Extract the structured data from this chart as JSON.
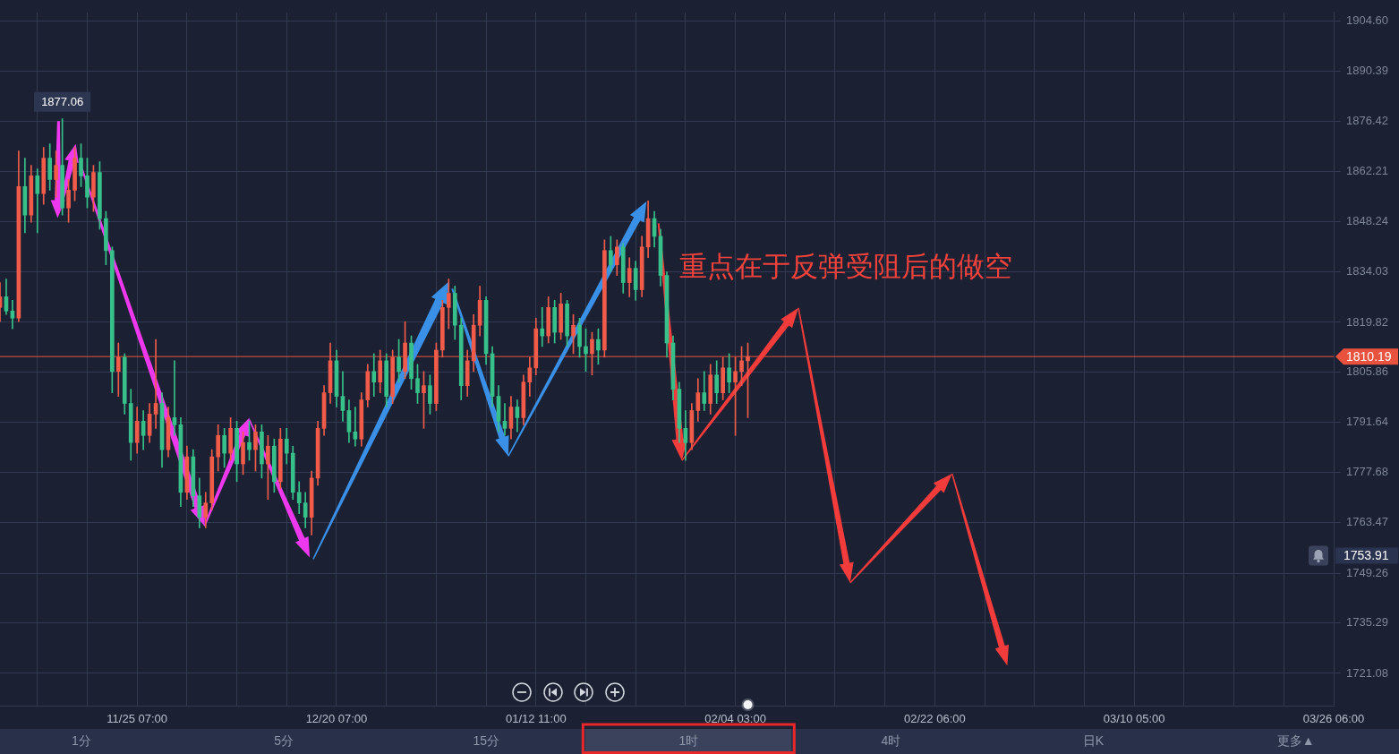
{
  "chart_data": {
    "type": "candlestick",
    "categories": [
      null,
      null,
      null,
      null,
      null,
      null,
      null,
      null,
      null,
      null,
      null,
      null,
      null,
      null,
      null,
      null,
      null,
      null,
      null,
      null,
      null,
      null,
      "11/25 07:00",
      null,
      null,
      null,
      null,
      null,
      null,
      null,
      null,
      null,
      null,
      null,
      null,
      null,
      null,
      null,
      null,
      null,
      null,
      null,
      null,
      null,
      null,
      null,
      null,
      null,
      null,
      null,
      null,
      null,
      null,
      null,
      "12/20 07:00",
      null,
      null,
      null,
      null,
      null,
      null,
      null,
      null,
      null,
      null,
      null,
      null,
      null,
      null,
      null,
      null,
      null,
      null,
      null,
      null,
      null,
      null,
      null,
      null,
      null,
      null,
      null,
      null,
      null,
      null,
      null,
      "01/12 11:00",
      null,
      null,
      null,
      null,
      null,
      null,
      null,
      null,
      null,
      null,
      null,
      null,
      null,
      null,
      null,
      null,
      null,
      null,
      null,
      null,
      null,
      null,
      null,
      null,
      null,
      null,
      null,
      null,
      null,
      null,
      null,
      "02/04 03:00",
      null,
      null,
      null,
      null,
      null,
      null,
      null,
      null,
      null,
      null,
      null,
      null,
      null,
      null,
      null,
      null,
      null,
      null,
      null,
      null,
      null,
      null,
      null,
      null,
      null,
      null,
      null,
      null,
      null,
      null,
      null,
      "02/22 06:00",
      null,
      null,
      null,
      null,
      null,
      null,
      null,
      null,
      null,
      null,
      null,
      null,
      null,
      null,
      null,
      null,
      null,
      null,
      null,
      null,
      null,
      null,
      null,
      null,
      null,
      null,
      null,
      null,
      null,
      null,
      null,
      "03/10 05:00",
      null,
      null,
      null,
      null,
      null,
      null,
      null,
      null,
      null,
      null,
      null,
      null,
      null,
      null,
      null,
      null,
      null,
      null,
      null,
      null,
      null,
      null,
      null,
      null,
      null,
      null,
      null,
      null,
      null,
      null,
      null,
      "03/26 06:00"
    ],
    "ohlc": [
      [
        1824,
        1831,
        1820,
        1827
      ],
      [
        1827,
        1832,
        1822,
        1823
      ],
      [
        1823,
        1826,
        1818,
        1821
      ],
      [
        1821,
        1868,
        1820,
        1858
      ],
      [
        1858,
        1866,
        1845,
        1850
      ],
      [
        1850,
        1864,
        1848,
        1861
      ],
      [
        1861,
        1863,
        1845,
        1856
      ],
      [
        1856,
        1869,
        1853,
        1866
      ],
      [
        1866,
        1870,
        1857,
        1860
      ],
      [
        1860,
        1868,
        1855,
        1864
      ],
      [
        1864,
        1877.06,
        1850,
        1852
      ],
      [
        1852,
        1860,
        1848,
        1857
      ],
      [
        1857,
        1869,
        1854,
        1866
      ],
      [
        1866,
        1870,
        1858,
        1861
      ],
      [
        1861,
        1866,
        1852,
        1855
      ],
      [
        1855,
        1864,
        1851,
        1862
      ],
      [
        1862,
        1865,
        1846,
        1849
      ],
      [
        1849,
        1851,
        1836,
        1840
      ],
      [
        1840,
        1841,
        1800,
        1806
      ],
      [
        1806,
        1814,
        1799,
        1810
      ],
      [
        1810,
        1811,
        1794,
        1797
      ],
      [
        1797,
        1801,
        1781,
        1786
      ],
      [
        1786,
        1796,
        1783,
        1792
      ],
      [
        1792,
        1795,
        1784,
        1788
      ],
      [
        1788,
        1797,
        1786,
        1794
      ],
      [
        1794,
        1815,
        1790,
        1797
      ],
      [
        1797,
        1800,
        1779,
        1784
      ],
      [
        1784,
        1796,
        1782,
        1793
      ],
      [
        1793,
        1809,
        1788,
        1791
      ],
      [
        1791,
        1793,
        1768,
        1772
      ],
      [
        1772,
        1785,
        1770,
        1782
      ],
      [
        1782,
        1784,
        1768,
        1771
      ],
      [
        1771,
        1776,
        1762,
        1765
      ],
      [
        1765,
        1772,
        1762,
        1769
      ],
      [
        1769,
        1784,
        1767,
        1782
      ],
      [
        1782,
        1791,
        1778,
        1788
      ],
      [
        1788,
        1790,
        1779,
        1783
      ],
      [
        1783,
        1793,
        1781,
        1790
      ],
      [
        1790,
        1792,
        1775,
        1780
      ],
      [
        1780,
        1789,
        1777,
        1786
      ],
      [
        1786,
        1792,
        1781,
        1784
      ],
      [
        1784,
        1791,
        1778,
        1789
      ],
      [
        1789,
        1791,
        1776,
        1780
      ],
      [
        1780,
        1788,
        1770,
        1785
      ],
      [
        1785,
        1787,
        1772,
        1775
      ],
      [
        1775,
        1790,
        1773,
        1787
      ],
      [
        1787,
        1790,
        1780,
        1783
      ],
      [
        1783,
        1785,
        1770,
        1772
      ],
      [
        1772,
        1775,
        1766,
        1769
      ],
      [
        1769,
        1772,
        1762,
        1765
      ],
      [
        1765,
        1778,
        1760,
        1776
      ],
      [
        1776,
        1792,
        1774,
        1790
      ],
      [
        1790,
        1802,
        1788,
        1800
      ],
      [
        1800,
        1814,
        1797,
        1809
      ],
      [
        1809,
        1812,
        1796,
        1799
      ],
      [
        1799,
        1806,
        1792,
        1795
      ],
      [
        1795,
        1798,
        1786,
        1789
      ],
      [
        1789,
        1796,
        1785,
        1787
      ],
      [
        1787,
        1800,
        1785,
        1798
      ],
      [
        1798,
        1808,
        1796,
        1806
      ],
      [
        1806,
        1811,
        1799,
        1803
      ],
      [
        1803,
        1812,
        1800,
        1809
      ],
      [
        1809,
        1811,
        1796,
        1799
      ],
      [
        1799,
        1812,
        1797,
        1810
      ],
      [
        1810,
        1815,
        1803,
        1806
      ],
      [
        1806,
        1820,
        1804,
        1814
      ],
      [
        1814,
        1816,
        1801,
        1804
      ],
      [
        1804,
        1808,
        1797,
        1800
      ],
      [
        1800,
        1806,
        1790,
        1802
      ],
      [
        1802,
        1805,
        1794,
        1797
      ],
      [
        1797,
        1814,
        1795,
        1812
      ],
      [
        1812,
        1826,
        1810,
        1824
      ],
      [
        1824,
        1832,
        1818,
        1828
      ],
      [
        1828,
        1830,
        1815,
        1819
      ],
      [
        1819,
        1821,
        1798,
        1802
      ],
      [
        1802,
        1812,
        1799,
        1809
      ],
      [
        1809,
        1822,
        1806,
        1819
      ],
      [
        1819,
        1830,
        1816,
        1826
      ],
      [
        1826,
        1827,
        1808,
        1811
      ],
      [
        1811,
        1813,
        1796,
        1799
      ],
      [
        1799,
        1802,
        1789,
        1792
      ],
      [
        1792,
        1797,
        1788,
        1790
      ],
      [
        1790,
        1799,
        1787,
        1796
      ],
      [
        1796,
        1798,
        1789,
        1793
      ],
      [
        1793,
        1805,
        1791,
        1803
      ],
      [
        1803,
        1810,
        1799,
        1807
      ],
      [
        1807,
        1821,
        1805,
        1818
      ],
      [
        1818,
        1824,
        1813,
        1816
      ],
      [
        1816,
        1827,
        1814,
        1824
      ],
      [
        1824,
        1826,
        1814,
        1817
      ],
      [
        1817,
        1828,
        1815,
        1825
      ],
      [
        1825,
        1826,
        1813,
        1816
      ],
      [
        1816,
        1822,
        1811,
        1819
      ],
      [
        1819,
        1821,
        1810,
        1813
      ],
      [
        1813,
        1818,
        1806,
        1811
      ],
      [
        1811,
        1817,
        1805,
        1815
      ],
      [
        1815,
        1818,
        1808,
        1812
      ],
      [
        1812,
        1843,
        1810,
        1840
      ],
      [
        1840,
        1844,
        1834,
        1836
      ],
      [
        1836,
        1843,
        1833,
        1841
      ],
      [
        1841,
        1842,
        1828,
        1831
      ],
      [
        1831,
        1838,
        1827,
        1835
      ],
      [
        1835,
        1837,
        1826,
        1829
      ],
      [
        1829,
        1844,
        1827,
        1841
      ],
      [
        1841,
        1854,
        1838,
        1849
      ],
      [
        1849,
        1851,
        1841,
        1844
      ],
      [
        1844,
        1846,
        1830,
        1833
      ],
      [
        1833,
        1834,
        1810,
        1814
      ],
      [
        1814,
        1816,
        1798,
        1801
      ],
      [
        1801,
        1803,
        1786,
        1790
      ],
      [
        1790,
        1795,
        1781,
        1786
      ],
      [
        1786,
        1797,
        1784,
        1795
      ],
      [
        1795,
        1804,
        1792,
        1800
      ],
      [
        1800,
        1806,
        1795,
        1797
      ],
      [
        1797,
        1808,
        1794,
        1805
      ],
      [
        1805,
        1809,
        1797,
        1800
      ],
      [
        1800,
        1810,
        1798,
        1807
      ],
      [
        1807,
        1811,
        1800,
        1803
      ],
      [
        1803,
        1810,
        1788,
        1806
      ],
      [
        1806,
        1813,
        1802,
        1809
      ],
      [
        1809,
        1814,
        1793,
        1810.19
      ],
      null,
      null,
      null,
      null,
      null,
      null,
      null,
      null,
      null,
      null,
      null,
      null,
      null,
      null,
      null,
      null,
      null,
      null,
      null,
      null,
      null,
      null,
      null,
      null,
      null,
      null,
      null,
      null,
      null,
      null,
      null,
      null,
      null,
      null,
      null,
      null,
      null,
      null,
      null,
      null,
      null,
      null,
      null,
      null,
      null,
      null,
      null,
      null,
      null,
      null,
      null,
      null,
      null,
      null,
      null,
      null,
      null,
      null,
      null,
      null,
      null,
      null,
      null,
      null,
      null,
      null,
      null,
      null,
      null,
      null,
      null,
      null,
      null,
      null,
      null,
      null,
      null,
      null,
      null,
      null,
      null,
      null,
      null,
      null,
      null,
      null,
      null,
      null,
      null,
      null,
      null,
      null,
      null,
      null
    ],
    "colors": [
      "#f05b4a",
      "#37c08a",
      "#37c08a",
      "#f05b4a",
      "#37c08a",
      "#f05b4a",
      "#37c08a",
      "#f05b4a",
      "#37c08a",
      "#f05b4a",
      "#37c08a",
      "#f05b4a",
      "#f05b4a",
      "#37c08a",
      "#37c08a",
      "#f05b4a",
      "#37c08a",
      "#37c08a",
      "#37c08a",
      "#f05b4a",
      "#37c08a",
      "#37c08a",
      "#f05b4a",
      "#37c08a",
      "#f05b4a",
      "#f05b4a",
      "#37c08a",
      "#f05b4a",
      "#37c08a",
      "#37c08a",
      "#f05b4a",
      "#37c08a",
      "#37c08a",
      "#f05b4a",
      "#f05b4a",
      "#f05b4a",
      "#37c08a",
      "#f05b4a",
      "#37c08a",
      "#f05b4a",
      "#37c08a",
      "#f05b4a",
      "#37c08a",
      "#f05b4a",
      "#37c08a",
      "#f05b4a",
      "#37c08a",
      "#37c08a",
      "#37c08a",
      "#37c08a",
      "#f05b4a",
      "#f05b4a",
      "#f05b4a",
      "#f05b4a",
      "#37c08a",
      "#37c08a",
      "#37c08a",
      "#37c08a",
      "#f05b4a",
      "#f05b4a",
      "#37c08a",
      "#f05b4a",
      "#37c08a",
      "#f05b4a",
      "#37c08a",
      "#f05b4a",
      "#37c08a",
      "#37c08a",
      "#f05b4a",
      "#37c08a",
      "#f05b4a",
      "#f05b4a",
      "#f05b4a",
      "#37c08a",
      "#37c08a",
      "#f05b4a",
      "#f05b4a",
      "#f05b4a",
      "#37c08a",
      "#37c08a",
      "#37c08a",
      "#37c08a",
      "#f05b4a",
      "#37c08a",
      "#f05b4a",
      "#f05b4a",
      "#f05b4a",
      "#37c08a",
      "#f05b4a",
      "#37c08a",
      "#f05b4a",
      "#37c08a",
      "#f05b4a",
      "#37c08a",
      "#37c08a",
      "#f05b4a",
      "#37c08a",
      "#f05b4a",
      "#37c08a",
      "#f05b4a",
      "#37c08a",
      "#f05b4a",
      "#37c08a",
      "#f05b4a",
      "#f05b4a",
      "#37c08a",
      "#37c08a",
      "#37c08a",
      "#37c08a",
      "#37c08a",
      "#37c08a",
      "#f05b4a",
      "#f05b4a",
      "#37c08a",
      "#f05b4a",
      "#37c08a",
      "#f05b4a",
      "#37c08a",
      "#f05b4a",
      "#f05b4a",
      "#f05b4a",
      null,
      null,
      null,
      null,
      null,
      null,
      null,
      null,
      null,
      null,
      null,
      null,
      null,
      null,
      null,
      null,
      null,
      null,
      null,
      null,
      null,
      null,
      null,
      null,
      null,
      null,
      null,
      null,
      null,
      null,
      null,
      null,
      null,
      null,
      null,
      null,
      null,
      null,
      null,
      null,
      null,
      null,
      null,
      null,
      null,
      null,
      null,
      null,
      null,
      null,
      null,
      null,
      null,
      null,
      null,
      null,
      null,
      null,
      null,
      null,
      null,
      null,
      null,
      null,
      null,
      null,
      null,
      null,
      null,
      null,
      null,
      null,
      null,
      null,
      null,
      null,
      null,
      null,
      null,
      null,
      null,
      null,
      null,
      null,
      null,
      null,
      null,
      null,
      null,
      null,
      null,
      null,
      null,
      null
    ],
    "ylim": [
      1712,
      1907
    ],
    "yticks": [
      {
        "value": 1904.6,
        "label": "1904.60"
      },
      1890.39,
      1876.42,
      1862.21,
      1848.24,
      1834.03,
      1819.82,
      1805.86,
      1791.64,
      1777.68,
      1763.47,
      1749.26,
      1735.29,
      1721.08
    ],
    "grid": true,
    "ref_lines": [
      {
        "axis": "y",
        "value": 1810.19,
        "label": "1810.19",
        "color": "#e9523f"
      }
    ],
    "annotations": [
      "重点在于反弹受阻后的做空",
      {
        "text": "1877.06",
        "y": 1877.06
      },
      "1753.91",
      "1分",
      "5分",
      "15分",
      "1时",
      "4时",
      "日K",
      "更多▲"
    ]
  }
}
